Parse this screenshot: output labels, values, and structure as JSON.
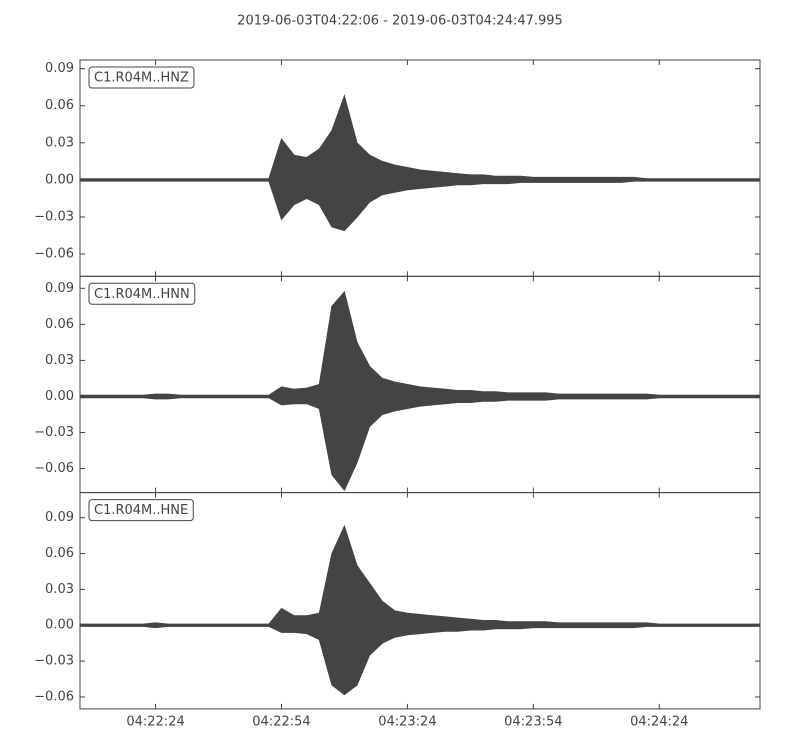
{
  "title": "2019-06-03T04:22:06  -  2019-06-03T04:24:47.995",
  "chart_data": [
    {
      "type": "area",
      "label": "C1.R04M..HNZ",
      "color": "#444444",
      "x": [
        "04:22:06",
        "04:22:09",
        "04:22:12",
        "04:22:15",
        "04:22:18",
        "04:22:21",
        "04:22:24",
        "04:22:27",
        "04:22:30",
        "04:22:33",
        "04:22:36",
        "04:22:39",
        "04:22:42",
        "04:22:45",
        "04:22:48",
        "04:22:51",
        "04:22:54",
        "04:22:57",
        "04:23:00",
        "04:23:03",
        "04:23:06",
        "04:23:09",
        "04:23:12",
        "04:23:15",
        "04:23:18",
        "04:23:21",
        "04:23:24",
        "04:23:27",
        "04:23:30",
        "04:23:33",
        "04:23:36",
        "04:23:39",
        "04:23:42",
        "04:23:45",
        "04:23:48",
        "04:23:51",
        "04:23:54",
        "04:23:57",
        "04:24:00",
        "04:24:03",
        "04:24:06",
        "04:24:09",
        "04:24:12",
        "04:24:15",
        "04:24:18",
        "04:24:21",
        "04:24:24",
        "04:24:27",
        "04:24:30",
        "04:24:33",
        "04:24:36",
        "04:24:39",
        "04:24:42",
        "04:24:45",
        "04:24:48"
      ],
      "series": [
        {
          "values": [
            0.001,
            0.001,
            0.001,
            0.001,
            0.001,
            0.001,
            0.001,
            0.001,
            0.001,
            0.001,
            0.001,
            0.001,
            0.001,
            0.001,
            0.001,
            0.001,
            0.033,
            0.02,
            0.018,
            0.025,
            0.04,
            0.068,
            0.03,
            0.02,
            0.015,
            0.012,
            0.01,
            0.008,
            0.007,
            0.006,
            0.005,
            0.004,
            0.004,
            0.003,
            0.003,
            0.003,
            0.002,
            0.002,
            0.002,
            0.002,
            0.002,
            0.002,
            0.002,
            0.002,
            0.002,
            0.001,
            0.001,
            0.001,
            0.001,
            0.001,
            0.001,
            0.001,
            0.001,
            0.001,
            0.001
          ]
        },
        {
          "values": [
            -0.001,
            -0.001,
            -0.001,
            -0.001,
            -0.001,
            -0.001,
            -0.001,
            -0.001,
            -0.001,
            -0.001,
            -0.001,
            -0.001,
            -0.001,
            -0.001,
            -0.001,
            -0.001,
            -0.032,
            -0.02,
            -0.015,
            -0.02,
            -0.038,
            -0.041,
            -0.03,
            -0.018,
            -0.012,
            -0.01,
            -0.008,
            -0.007,
            -0.006,
            -0.005,
            -0.004,
            -0.004,
            -0.003,
            -0.003,
            -0.003,
            -0.002,
            -0.002,
            -0.002,
            -0.002,
            -0.002,
            -0.002,
            -0.002,
            -0.002,
            -0.002,
            -0.001,
            -0.001,
            -0.001,
            -0.001,
            -0.001,
            -0.001,
            -0.001,
            -0.001,
            -0.001,
            -0.001,
            -0.001
          ]
        }
      ],
      "xlim": [
        "04:22:06",
        "04:24:48"
      ],
      "xticks": [
        "04:22:24",
        "04:22:54",
        "04:23:24",
        "04:23:54",
        "04:24:24"
      ],
      "ylim": [
        -0.078,
        0.097
      ],
      "yticks": [
        {
          "value": -0.06,
          "label": "−0.06"
        },
        {
          "value": -0.03,
          "label": "−0.03"
        },
        {
          "value": 0,
          "label": "0.00"
        },
        {
          "value": 0.03,
          "label": "0.03"
        },
        {
          "value": 0.06,
          "label": "0.06"
        },
        {
          "value": 0.09,
          "label": "0.09"
        }
      ]
    },
    {
      "type": "area",
      "label": "C1.R04M..HNN",
      "color": "#444444",
      "x": [
        "04:22:06",
        "04:22:09",
        "04:22:12",
        "04:22:15",
        "04:22:18",
        "04:22:21",
        "04:22:24",
        "04:22:27",
        "04:22:30",
        "04:22:33",
        "04:22:36",
        "04:22:39",
        "04:22:42",
        "04:22:45",
        "04:22:48",
        "04:22:51",
        "04:22:54",
        "04:22:57",
        "04:23:00",
        "04:23:03",
        "04:23:06",
        "04:23:09",
        "04:23:12",
        "04:23:15",
        "04:23:18",
        "04:23:21",
        "04:23:24",
        "04:23:27",
        "04:23:30",
        "04:23:33",
        "04:23:36",
        "04:23:39",
        "04:23:42",
        "04:23:45",
        "04:23:48",
        "04:23:51",
        "04:23:54",
        "04:23:57",
        "04:24:00",
        "04:24:03",
        "04:24:06",
        "04:24:09",
        "04:24:12",
        "04:24:15",
        "04:24:18",
        "04:24:21",
        "04:24:24",
        "04:24:27",
        "04:24:30",
        "04:24:33",
        "04:24:36",
        "04:24:39",
        "04:24:42",
        "04:24:45",
        "04:24:48"
      ],
      "series": [
        {
          "values": [
            0.001,
            0.001,
            0.001,
            0.001,
            0.001,
            0.001,
            0.002,
            0.002,
            0.001,
            0.001,
            0.001,
            0.001,
            0.001,
            0.001,
            0.001,
            0.001,
            0.008,
            0.006,
            0.007,
            0.01,
            0.075,
            0.087,
            0.045,
            0.025,
            0.015,
            0.012,
            0.01,
            0.008,
            0.007,
            0.006,
            0.005,
            0.005,
            0.004,
            0.004,
            0.003,
            0.003,
            0.003,
            0.003,
            0.002,
            0.002,
            0.002,
            0.002,
            0.002,
            0.002,
            0.002,
            0.002,
            0.001,
            0.001,
            0.001,
            0.001,
            0.001,
            0.001,
            0.001,
            0.001,
            0.001
          ]
        },
        {
          "values": [
            -0.001,
            -0.001,
            -0.001,
            -0.001,
            -0.001,
            -0.001,
            -0.002,
            -0.002,
            -0.001,
            -0.001,
            -0.001,
            -0.001,
            -0.001,
            -0.001,
            -0.001,
            -0.001,
            -0.007,
            -0.006,
            -0.006,
            -0.01,
            -0.065,
            -0.078,
            -0.055,
            -0.025,
            -0.015,
            -0.012,
            -0.01,
            -0.008,
            -0.007,
            -0.006,
            -0.005,
            -0.005,
            -0.004,
            -0.004,
            -0.003,
            -0.003,
            -0.003,
            -0.003,
            -0.002,
            -0.002,
            -0.002,
            -0.002,
            -0.002,
            -0.002,
            -0.002,
            -0.002,
            -0.001,
            -0.001,
            -0.001,
            -0.001,
            -0.001,
            -0.001,
            -0.001,
            -0.001,
            -0.001
          ]
        }
      ],
      "xlim": [
        "04:22:06",
        "04:24:48"
      ],
      "xticks": [
        "04:22:24",
        "04:22:54",
        "04:23:24",
        "04:23:54",
        "04:24:24"
      ],
      "ylim": [
        -0.08,
        0.1
      ],
      "yticks": [
        {
          "value": -0.06,
          "label": "−0.06"
        },
        {
          "value": -0.03,
          "label": "−0.03"
        },
        {
          "value": 0,
          "label": "0.00"
        },
        {
          "value": 0.03,
          "label": "0.03"
        },
        {
          "value": 0.06,
          "label": "0.06"
        },
        {
          "value": 0.09,
          "label": "0.09"
        }
      ]
    },
    {
      "type": "area",
      "label": "C1.R04M..HNE",
      "color": "#444444",
      "x": [
        "04:22:06",
        "04:22:09",
        "04:22:12",
        "04:22:15",
        "04:22:18",
        "04:22:21",
        "04:22:24",
        "04:22:27",
        "04:22:30",
        "04:22:33",
        "04:22:36",
        "04:22:39",
        "04:22:42",
        "04:22:45",
        "04:22:48",
        "04:22:51",
        "04:22:54",
        "04:22:57",
        "04:23:00",
        "04:23:03",
        "04:23:06",
        "04:23:09",
        "04:23:12",
        "04:23:15",
        "04:23:18",
        "04:23:21",
        "04:23:24",
        "04:23:27",
        "04:23:30",
        "04:23:33",
        "04:23:36",
        "04:23:39",
        "04:23:42",
        "04:23:45",
        "04:23:48",
        "04:23:51",
        "04:23:54",
        "04:23:57",
        "04:24:00",
        "04:24:03",
        "04:24:06",
        "04:24:09",
        "04:24:12",
        "04:24:15",
        "04:24:18",
        "04:24:21",
        "04:24:24",
        "04:24:27",
        "04:24:30",
        "04:24:33",
        "04:24:36",
        "04:24:39",
        "04:24:42",
        "04:24:45",
        "04:24:48"
      ],
      "series": [
        {
          "values": [
            0.001,
            0.001,
            0.001,
            0.001,
            0.001,
            0.001,
            0.002,
            0.001,
            0.001,
            0.001,
            0.001,
            0.001,
            0.001,
            0.001,
            0.001,
            0.001,
            0.014,
            0.008,
            0.008,
            0.01,
            0.06,
            0.083,
            0.05,
            0.035,
            0.02,
            0.012,
            0.01,
            0.009,
            0.008,
            0.007,
            0.006,
            0.005,
            0.004,
            0.004,
            0.003,
            0.003,
            0.003,
            0.003,
            0.002,
            0.002,
            0.002,
            0.002,
            0.002,
            0.002,
            0.002,
            0.002,
            0.001,
            0.001,
            0.001,
            0.001,
            0.001,
            0.001,
            0.001,
            0.001,
            0.001
          ]
        },
        {
          "values": [
            -0.001,
            -0.001,
            -0.001,
            -0.001,
            -0.001,
            -0.001,
            -0.002,
            -0.001,
            -0.001,
            -0.001,
            -0.001,
            -0.001,
            -0.001,
            -0.001,
            -0.001,
            -0.001,
            -0.006,
            -0.006,
            -0.007,
            -0.012,
            -0.05,
            -0.058,
            -0.05,
            -0.025,
            -0.015,
            -0.01,
            -0.008,
            -0.007,
            -0.006,
            -0.005,
            -0.005,
            -0.004,
            -0.004,
            -0.003,
            -0.003,
            -0.003,
            -0.002,
            -0.002,
            -0.002,
            -0.002,
            -0.002,
            -0.002,
            -0.002,
            -0.002,
            -0.002,
            -0.001,
            -0.001,
            -0.001,
            -0.001,
            -0.001,
            -0.001,
            -0.001,
            -0.001,
            -0.001,
            -0.001
          ]
        }
      ],
      "xlim": [
        "04:22:06",
        "04:24:48"
      ],
      "xticks": [
        "04:22:24",
        "04:22:54",
        "04:23:24",
        "04:23:54",
        "04:24:24"
      ],
      "ylim": [
        -0.07,
        0.111
      ],
      "yticks": [
        {
          "value": -0.06,
          "label": "−0.06"
        },
        {
          "value": -0.03,
          "label": "−0.03"
        },
        {
          "value": 0,
          "label": "0.00"
        },
        {
          "value": 0.03,
          "label": "0.03"
        },
        {
          "value": 0.06,
          "label": "0.06"
        },
        {
          "value": 0.09,
          "label": "0.09"
        }
      ]
    }
  ]
}
